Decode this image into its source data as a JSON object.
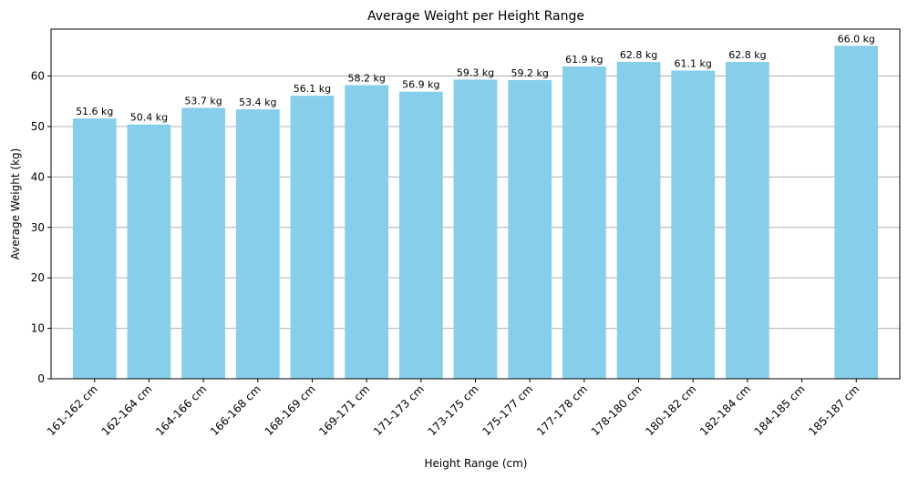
{
  "chart_data": {
    "type": "bar",
    "title": "Average Weight per Height Range",
    "xlabel": "Height Range (cm)",
    "ylabel": "Average Weight (kg)",
    "categories": [
      "161-162 cm",
      "162-164 cm",
      "164-166 cm",
      "166-168 cm",
      "168-169 cm",
      "169-171 cm",
      "171-173 cm",
      "173-175 cm",
      "175-177 cm",
      "177-178 cm",
      "178-180 cm",
      "180-182 cm",
      "182-184 cm",
      "184-185 cm",
      "185-187 cm"
    ],
    "values": [
      51.6,
      50.4,
      53.7,
      53.4,
      56.1,
      58.2,
      56.9,
      59.3,
      59.2,
      61.9,
      62.8,
      61.1,
      62.8,
      null,
      66.0
    ],
    "data_labels": [
      "51.6 kg",
      "50.4 kg",
      "53.7 kg",
      "53.4 kg",
      "56.1 kg",
      "58.2 kg",
      "56.9 kg",
      "59.3 kg",
      "59.2 kg",
      "61.9 kg",
      "62.8 kg",
      "61.1 kg",
      "62.8 kg",
      "",
      "66.0 kg"
    ],
    "yticks": [
      0,
      10,
      20,
      30,
      40,
      50,
      60
    ],
    "ylim": [
      0,
      69.3
    ],
    "grid": "y",
    "bar_color": "#87ceeb",
    "grid_color": "#b0b0b0"
  }
}
